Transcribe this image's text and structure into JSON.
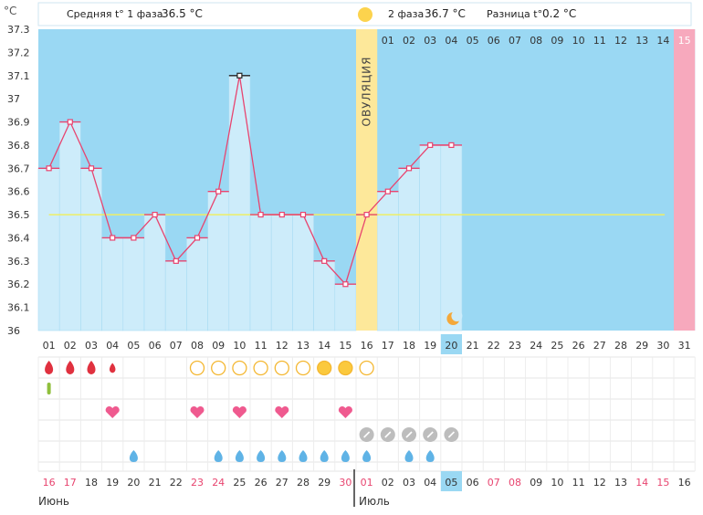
{
  "unit_label": "°C",
  "header": {
    "phase1_label": "Средняя t° 1 фаза",
    "phase1_value": "36.5 °C",
    "phase2_label": "2 фаза",
    "phase2_value": "36.7 °C",
    "diff_label": "Разница t°",
    "diff_value": "0.2 °C"
  },
  "ovulation_label": "ОВУЛЯЦИЯ",
  "phase2_day_numbers": [
    "01",
    "02",
    "03",
    "04",
    "05",
    "06",
    "07",
    "08",
    "09",
    "10",
    "11",
    "12",
    "13",
    "14",
    "15"
  ],
  "cycle_day_labels": [
    "01",
    "02",
    "03",
    "04",
    "05",
    "06",
    "07",
    "08",
    "09",
    "10",
    "11",
    "12",
    "13",
    "14",
    "15",
    "16",
    "17",
    "18",
    "19",
    "20",
    "21",
    "22",
    "23",
    "24",
    "25",
    "26",
    "27",
    "28",
    "29",
    "30",
    "31"
  ],
  "current_cycle_day": "20",
  "calendar": {
    "dates": [
      "16",
      "17",
      "18",
      "19",
      "20",
      "21",
      "22",
      "23",
      "24",
      "25",
      "26",
      "27",
      "28",
      "29",
      "30",
      "01",
      "02",
      "03",
      "04",
      "05",
      "06",
      "07",
      "08",
      "09",
      "10",
      "11",
      "12",
      "13",
      "14",
      "15",
      "16"
    ],
    "weekend_dates_idx": [
      0,
      1,
      7,
      8,
      14,
      15,
      21,
      22,
      28,
      29
    ],
    "today_idx": 19,
    "month1": "Июнь",
    "month2": "Июль"
  },
  "colors": {
    "chart_bg": "#9ad8f3",
    "bar": "#cdecfa",
    "line": "#e8446f",
    "ovulation": "#fde89a",
    "last_day": "#f7a9bd",
    "baseline": "#eeee66",
    "weekend": "#e8446f",
    "today_bg": "#9ad8f3"
  },
  "symbols": {
    "bleeding": [
      "large",
      "large",
      "large",
      "small"
    ],
    "mucus_day_idx": [
      7,
      8,
      9,
      10,
      11,
      12,
      13,
      14,
      15
    ],
    "mucus_filled_idx": [
      13,
      14
    ],
    "spotting_idx": [
      0
    ],
    "hearts_idx": [
      3,
      7,
      9,
      11,
      14
    ],
    "test_idx": [
      15,
      16,
      17,
      18,
      19
    ],
    "drops_idx": [
      4,
      8,
      9,
      10,
      11,
      12,
      13,
      14,
      15,
      17,
      18
    ]
  },
  "chart_data": {
    "type": "line",
    "ylabel": "°C",
    "ylim": [
      36,
      37.3
    ],
    "yticks": [
      "37.3",
      "37.2",
      "37.1",
      "37",
      "36.9",
      "36.8",
      "36.7",
      "36.6",
      "36.5",
      "36.4",
      "36.3",
      "36.2",
      "36.1",
      "36"
    ],
    "x": [
      "01",
      "02",
      "03",
      "04",
      "05",
      "06",
      "07",
      "08",
      "09",
      "10",
      "11",
      "12",
      "13",
      "14",
      "15",
      "16",
      "17",
      "18",
      "19",
      "20"
    ],
    "values": [
      36.7,
      36.9,
      36.7,
      36.4,
      36.4,
      36.5,
      36.3,
      36.4,
      36.6,
      37.1,
      36.5,
      36.5,
      36.5,
      36.3,
      36.2,
      36.5,
      36.6,
      36.7,
      36.8,
      36.8
    ],
    "coverline": 36.5,
    "ovulation_day": "16",
    "max_day": "10"
  }
}
